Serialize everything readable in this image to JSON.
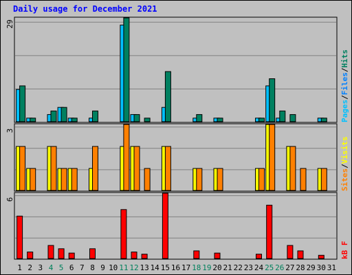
{
  "chart_data": {
    "type": "bar",
    "title": "Daily usage for December 2021",
    "days": [
      "1",
      "2",
      "3",
      "4",
      "5",
      "6",
      "7",
      "8",
      "9",
      "10",
      "11",
      "12",
      "13",
      "14",
      "15",
      "16",
      "17",
      "18",
      "19",
      "20",
      "21",
      "22",
      "23",
      "24",
      "25",
      "26",
      "27",
      "28",
      "29",
      "30",
      "31"
    ],
    "weekend_days": [
      "4",
      "5",
      "11",
      "12",
      "18",
      "19",
      "25",
      "26"
    ],
    "panels": [
      {
        "id": "hits",
        "max_label": "29",
        "ymax": 29,
        "series": [
          {
            "name": "Pages",
            "color": "#00c0ff",
            "values": [
              9,
              1,
              0,
              2,
              4,
              1,
              0,
              1,
              0,
              0,
              27,
              2,
              0,
              0,
              4,
              0,
              0,
              1,
              0,
              1,
              0,
              0,
              0,
              1,
              10,
              1,
              0,
              0,
              0,
              1,
              0
            ]
          },
          {
            "name": "Files",
            "color": "#0080ff",
            "values": []
          },
          {
            "name": "Hits",
            "color": "#008060",
            "values": [
              10,
              1,
              0,
              3,
              4,
              1,
              0,
              3,
              0,
              0,
              29,
              2,
              1,
              0,
              14,
              0,
              0,
              2,
              0,
              1,
              0,
              0,
              0,
              1,
              12,
              3,
              2,
              0,
              0,
              1,
              0
            ]
          }
        ],
        "legend": [
          "Pages",
          "/",
          "Files",
          "/",
          "Hits"
        ]
      },
      {
        "id": "visits",
        "max_label": "3",
        "ymax": 3,
        "series": [
          {
            "name": "Visits",
            "color": "#ffff00",
            "values": [
              2,
              1,
              0,
              2,
              1,
              1,
              0,
              1,
              0,
              0,
              2,
              2,
              0,
              0,
              2,
              0,
              0,
              1,
              0,
              1,
              0,
              0,
              0,
              1,
              3,
              0,
              2,
              0,
              0,
              1,
              0
            ]
          },
          {
            "name": "Sites",
            "color": "#ff8000",
            "values": [
              2,
              1,
              0,
              2,
              1,
              1,
              0,
              2,
              0,
              0,
              3,
              2,
              1,
              0,
              2,
              0,
              0,
              1,
              0,
              1,
              0,
              0,
              0,
              1,
              3,
              0,
              2,
              1,
              0,
              1,
              0
            ]
          }
        ],
        "legend": [
          "Sites",
          "/",
          "Visits"
        ]
      },
      {
        "id": "kbytes",
        "max_label": "6",
        "ymax": 6,
        "series": [
          {
            "name": "kB F",
            "color": "#ff0000",
            "values": [
              3.9,
              0.6,
              0,
              1.2,
              0.9,
              0.5,
              0,
              0.9,
              0,
              0,
              4.5,
              0.6,
              0.4,
              0,
              6.0,
              0,
              0,
              0.7,
              0,
              0.5,
              0,
              0,
              0,
              0.4,
              4.9,
              0,
              1.2,
              0.7,
              0,
              0.3,
              0
            ]
          }
        ],
        "legend": [
          "kB F"
        ]
      }
    ]
  },
  "colors": {
    "background": "#c0c0c0",
    "title": "#0000ff",
    "weekday_label": "#000000",
    "weekend_label": "#00805c",
    "grid": "#808080",
    "slash": "#000000"
  }
}
